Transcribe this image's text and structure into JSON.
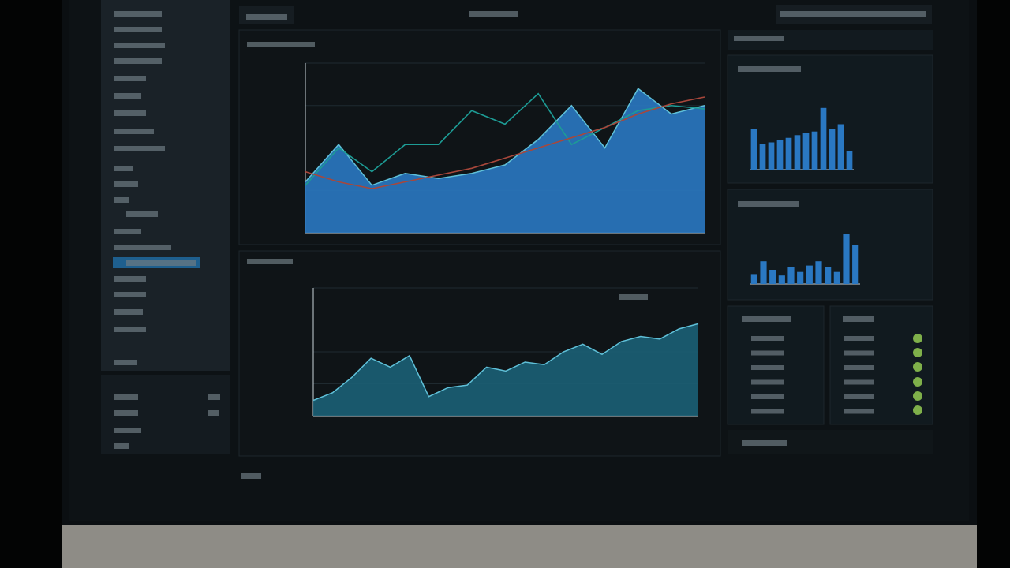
{
  "chart_data": [
    {
      "type": "area",
      "ylim": [
        0,
        100
      ],
      "series": [
        {
          "color": "#2a78c2",
          "values": [
            30,
            52,
            28,
            35,
            32,
            35,
            40,
            55,
            75,
            50,
            85,
            70,
            75
          ]
        },
        {
          "color": "#1d9c95",
          "values": [
            28,
            50,
            36,
            52,
            52,
            72,
            64,
            82,
            52,
            62,
            72,
            75,
            73
          ]
        },
        {
          "color": "#a8473b",
          "values": [
            36,
            30,
            26,
            30,
            34,
            38,
            44,
            50,
            56,
            62,
            70,
            76,
            80
          ]
        }
      ]
    },
    {
      "type": "area",
      "ylim": [
        0,
        100
      ],
      "series": [
        {
          "color": "#1b5f75",
          "values": [
            12,
            18,
            30,
            45,
            38,
            47,
            15,
            22,
            24,
            38,
            35,
            42,
            40,
            50,
            56,
            48,
            58,
            62,
            60,
            68,
            72
          ]
        }
      ]
    },
    {
      "type": "bar",
      "ylim": [
        0,
        100
      ],
      "series": [
        {
          "color": "#2a78c2",
          "values": [
            45,
            28,
            30,
            33,
            35,
            38,
            40,
            42,
            68,
            45,
            50,
            20
          ]
        }
      ]
    },
    {
      "type": "bar",
      "ylim": [
        0,
        100
      ],
      "series": [
        {
          "color": "#2a78c2",
          "values": [
            14,
            32,
            20,
            12,
            24,
            17,
            26,
            32,
            24,
            17,
            70,
            55
          ]
        }
      ]
    }
  ]
}
